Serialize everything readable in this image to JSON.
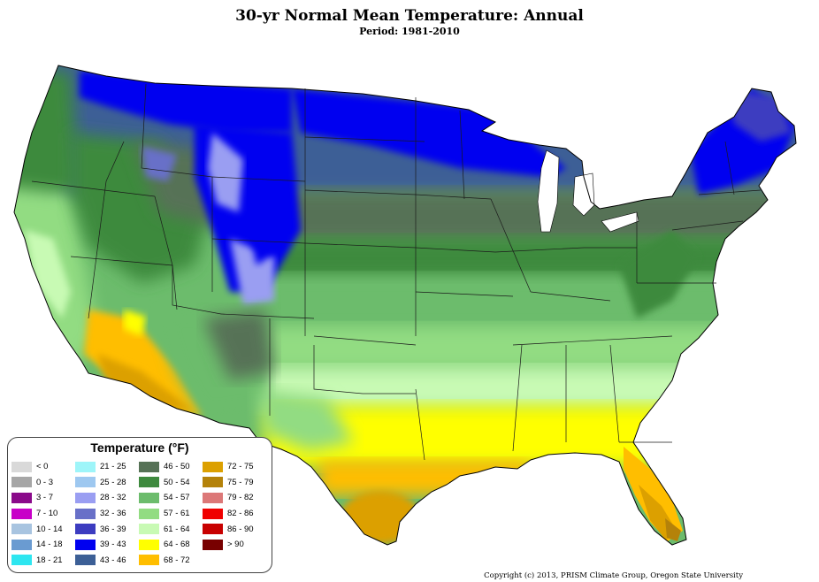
{
  "header": {
    "title": "30-yr Normal Mean Temperature: Annual",
    "subtitle": "Period: 1981-2010"
  },
  "legend": {
    "title": "Temperature (°F)",
    "items": [
      {
        "label": "< 0",
        "color": "#d9d9d9"
      },
      {
        "label": "0 - 3",
        "color": "#a6a6a6"
      },
      {
        "label": "3 - 7",
        "color": "#8a0a8a"
      },
      {
        "label": "7 - 10",
        "color": "#c800c8"
      },
      {
        "label": "10 - 14",
        "color": "#a8c4e0"
      },
      {
        "label": "14 - 18",
        "color": "#6a9bd1"
      },
      {
        "label": "18 - 21",
        "color": "#2ee6f0"
      },
      {
        "label": "21 - 25",
        "color": "#9ef5f9"
      },
      {
        "label": "25 - 28",
        "color": "#9ec8f0"
      },
      {
        "label": "28 - 32",
        "color": "#9a9ef2"
      },
      {
        "label": "32 - 36",
        "color": "#6870c8"
      },
      {
        "label": "36 - 39",
        "color": "#3c3cc0"
      },
      {
        "label": "39 - 43",
        "color": "#0000f0"
      },
      {
        "label": "43 - 46",
        "color": "#3c5f96"
      },
      {
        "label": "46 - 50",
        "color": "#567256"
      },
      {
        "label": "50 - 54",
        "color": "#3e8a3e"
      },
      {
        "label": "54 - 57",
        "color": "#6cbc6c"
      },
      {
        "label": "57 - 61",
        "color": "#92dc82"
      },
      {
        "label": "61 - 64",
        "color": "#c8fab4"
      },
      {
        "label": "64 - 68",
        "color": "#ffff00"
      },
      {
        "label": "68 - 72",
        "color": "#ffbe00"
      },
      {
        "label": "72 - 75",
        "color": "#dca000"
      },
      {
        "label": "75 - 79",
        "color": "#b4820a"
      },
      {
        "label": "79 - 82",
        "color": "#dc7878"
      },
      {
        "label": "82 - 86",
        "color": "#f00000"
      },
      {
        "label": "86 - 90",
        "color": "#c80000"
      },
      {
        "label": "> 90",
        "color": "#780000"
      }
    ]
  },
  "footer": {
    "credit": "Copyright (c) 2013, PRISM Climate Group, Oregon State University"
  }
}
